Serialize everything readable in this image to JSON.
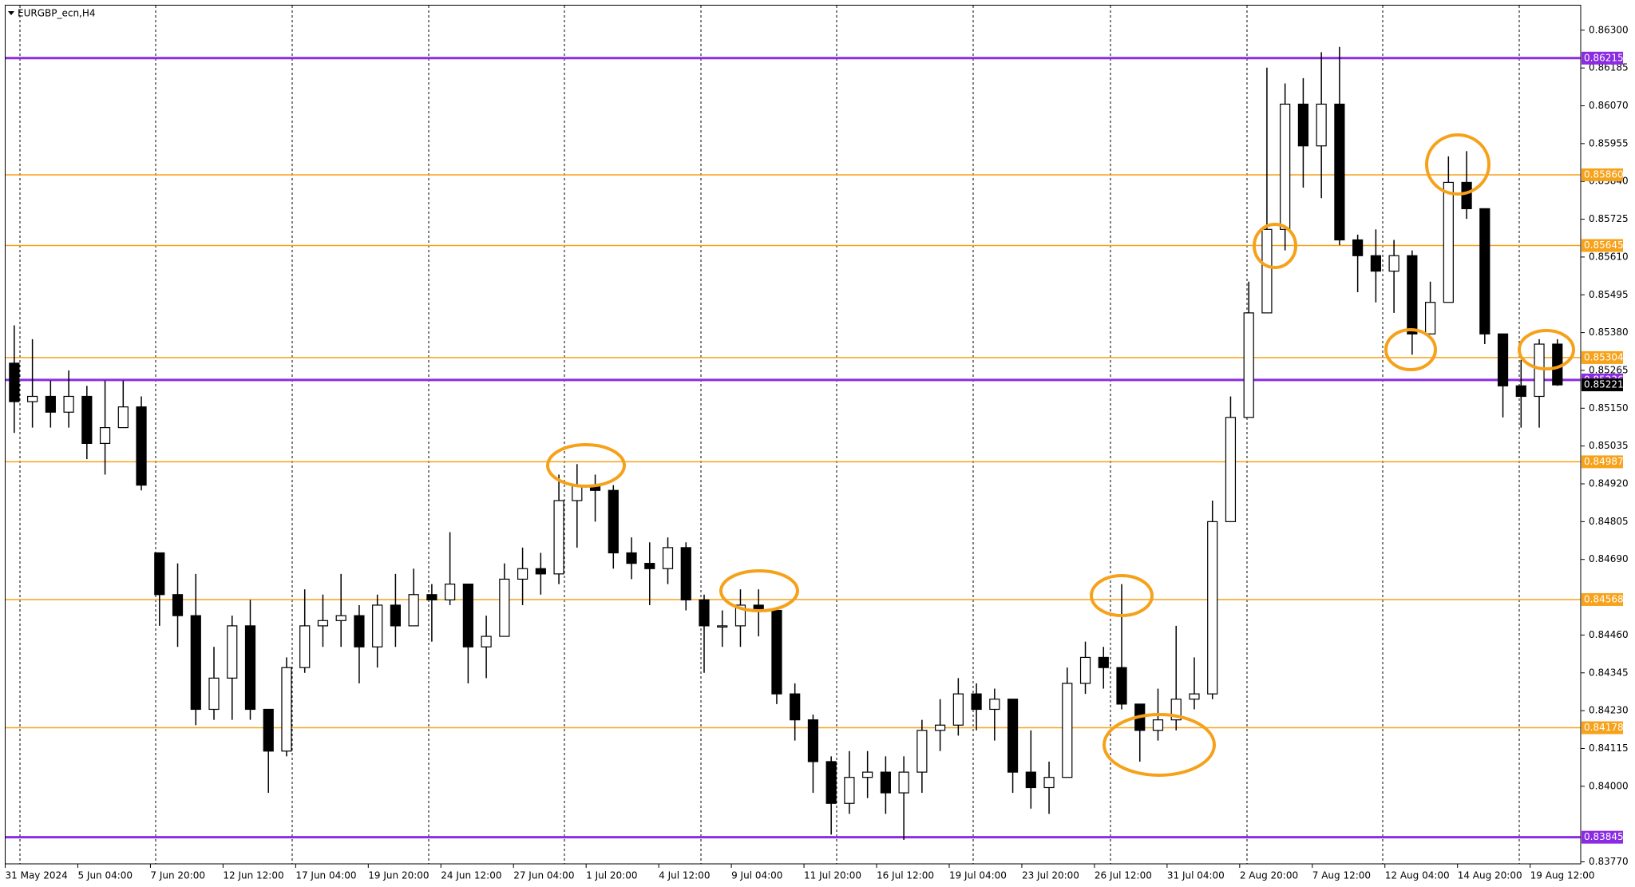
{
  "chart_data": {
    "type": "candlestick",
    "title": "EURGBP_ecn,H4",
    "categories": [
      "31 May 2024",
      null,
      null,
      null,
      "5 Jun 04:00",
      null,
      null,
      null,
      "7 Jun 20:00",
      null,
      null,
      null,
      "12 Jun 12:00",
      null,
      null,
      null,
      "17 Jun 04:00",
      null,
      null,
      null,
      "19 Jun 20:00",
      null,
      null,
      null,
      "24 Jun 12:00",
      null,
      null,
      null,
      "27 Jun 04:00",
      null,
      null,
      null,
      "1 Jul 20:00",
      null,
      null,
      null,
      "4 Jul 12:00",
      null,
      null,
      null,
      "9 Jul 04:00",
      null,
      null,
      null,
      "11 Jul 20:00",
      null,
      null,
      null,
      "16 Jul 12:00",
      null,
      null,
      null,
      "19 Jul 04:00",
      null,
      null,
      null,
      "23 Jul 20:00",
      null,
      null,
      null,
      "26 Jul 12:00",
      null,
      null,
      null,
      "31 Jul 04:00",
      null,
      null,
      null,
      "2 Aug 20:00",
      null,
      null,
      null,
      "7 Aug 12:00",
      null,
      null,
      null,
      "12 Aug 04:00",
      null,
      null,
      null,
      "14 Aug 20:00",
      null,
      null,
      null,
      "19 Aug 12:00",
      null
    ],
    "open": [
      0.85287,
      0.8517,
      0.85186,
      0.85138,
      0.85186,
      0.85043,
      0.85091,
      0.85154,
      0.8471,
      0.84583,
      0.84519,
      0.84234,
      0.84329,
      0.84488,
      0.84234,
      0.84107,
      0.84361,
      0.84488,
      0.84504,
      0.84519,
      0.84424,
      0.84551,
      0.84488,
      0.84583,
      0.84567,
      0.84615,
      0.84424,
      0.84456,
      0.8463,
      0.84662,
      0.84646,
      0.84869,
      0.84916,
      0.849,
      0.8471,
      0.84678,
      0.84662,
      0.84726,
      0.84567,
      0.84488,
      0.84488,
      0.84551,
      0.84535,
      0.84281,
      0.84202,
      0.84075,
      0.83948,
      0.84027,
      0.84043,
      0.8398,
      0.84043,
      0.8417,
      0.84186,
      0.84281,
      0.84234,
      0.84265,
      0.84043,
      0.83996,
      0.84027,
      0.84313,
      0.84392,
      0.84361,
      0.8425,
      0.8417,
      0.84202,
      0.84265,
      0.84281,
      0.84805,
      0.85122,
      0.8544,
      0.85694,
      0.86075,
      0.85948,
      0.86075,
      0.85662,
      0.85614,
      0.85567,
      0.85614,
      0.85376,
      0.85472,
      0.85837,
      0.85757,
      0.85376,
      0.85218,
      0.85186,
      0.85345
    ],
    "high": [
      0.85402,
      0.8536,
      0.85234,
      0.85265,
      0.85218,
      0.85234,
      0.85234,
      0.85186,
      0.8471,
      0.84678,
      0.84646,
      0.84424,
      0.84519,
      0.84567,
      0.84234,
      0.84392,
      0.84599,
      0.84583,
      0.84646,
      0.84551,
      0.84583,
      0.84646,
      0.84662,
      0.84615,
      0.84773,
      0.84615,
      0.84519,
      0.84678,
      0.84726,
      0.8471,
      0.84948,
      0.8498,
      0.84948,
      0.84916,
      0.84757,
      0.84742,
      0.84757,
      0.84742,
      0.84583,
      0.84535,
      0.84599,
      0.84599,
      0.84535,
      0.84313,
      0.84218,
      0.84091,
      0.84107,
      0.84107,
      0.84091,
      0.84091,
      0.84202,
      0.84265,
      0.84329,
      0.84313,
      0.84297,
      0.84265,
      0.8417,
      0.84075,
      0.84361,
      0.8444,
      0.84424,
      0.84615,
      0.8425,
      0.84297,
      0.84488,
      0.84392,
      0.84869,
      0.85186,
      0.85535,
      0.86186,
      0.86138,
      0.86154,
      0.86233,
      0.86249,
      0.85678,
      0.85694,
      0.85662,
      0.8563,
      0.85535,
      0.85916,
      0.85932,
      0.85757,
      0.85376,
      0.85297,
      0.8536,
      0.8536
    ],
    "low": [
      0.85075,
      0.85091,
      0.85091,
      0.85091,
      0.84995,
      0.84948,
      0.85091,
      0.849,
      0.84488,
      0.84424,
      0.84186,
      0.84202,
      0.84202,
      0.84202,
      0.8398,
      0.84091,
      0.84345,
      0.84424,
      0.84424,
      0.84313,
      0.84361,
      0.84424,
      0.84488,
      0.8444,
      0.84551,
      0.84313,
      0.84329,
      0.84456,
      0.84551,
      0.84583,
      0.84615,
      0.84726,
      0.84805,
      0.84662,
      0.8463,
      0.84551,
      0.84615,
      0.84535,
      0.84345,
      0.84424,
      0.84424,
      0.84456,
      0.8425,
      0.84139,
      0.8398,
      0.83853,
      0.83916,
      0.83964,
      0.83916,
      0.83837,
      0.8398,
      0.84107,
      0.84154,
      0.8417,
      0.84139,
      0.8398,
      0.83932,
      0.83916,
      0.84027,
      0.84281,
      0.84297,
      0.84234,
      0.84075,
      0.84139,
      0.8417,
      0.84234,
      0.84265,
      0.84805,
      0.85122,
      0.8544,
      0.8563,
      0.85821,
      0.85789,
      0.85646,
      0.85503,
      0.85472,
      0.8544,
      0.85313,
      0.85376,
      0.85472,
      0.85726,
      0.85345,
      0.85122,
      0.85091,
      0.85091,
      0.85218
    ],
    "close": [
      0.8517,
      0.85186,
      0.85138,
      0.85186,
      0.85043,
      0.85091,
      0.85154,
      0.84916,
      0.84583,
      0.84519,
      0.84234,
      0.84329,
      0.84488,
      0.84234,
      0.84107,
      0.84361,
      0.84488,
      0.84504,
      0.84519,
      0.84424,
      0.84551,
      0.84488,
      0.84583,
      0.84567,
      0.84615,
      0.84424,
      0.84456,
      0.8463,
      0.84662,
      0.84646,
      0.84869,
      0.84916,
      0.849,
      0.8471,
      0.84678,
      0.84662,
      0.84726,
      0.84567,
      0.84488,
      0.84488,
      0.84551,
      0.84535,
      0.84281,
      0.84202,
      0.84075,
      0.83948,
      0.84027,
      0.84043,
      0.8398,
      0.84043,
      0.8417,
      0.84186,
      0.84281,
      0.84234,
      0.84265,
      0.84043,
      0.83996,
      0.84027,
      0.84313,
      0.84392,
      0.84361,
      0.8425,
      0.8417,
      0.84202,
      0.84265,
      0.84281,
      0.84805,
      0.85122,
      0.8544,
      0.85694,
      0.86075,
      0.85948,
      0.86075,
      0.85662,
      0.85614,
      0.85567,
      0.85614,
      0.85376,
      0.85472,
      0.85837,
      0.85757,
      0.85376,
      0.85218,
      0.85186,
      0.85345,
      0.85221
    ],
    "up_color": "#ffffff",
    "down_color": "#000000",
    "wick_color": "#000000",
    "ylim": [
      0.83764,
      0.86376
    ],
    "yticks": [
      {
        "value": 0.863,
        "label": "0.86300"
      },
      0.86185,
      {
        "value": 0.8607,
        "label": "0.86070"
      },
      0.85955,
      {
        "value": 0.8584,
        "label": "0.85840"
      },
      0.85725,
      {
        "value": 0.8561,
        "label": "0.85610"
      },
      0.85495,
      {
        "value": 0.8538,
        "label": "0.85380"
      },
      0.85265,
      {
        "value": 0.8515,
        "label": "0.85150"
      },
      0.85035,
      {
        "value": 0.8492,
        "label": "0.84920"
      },
      0.84805,
      {
        "value": 0.8469,
        "label": "0.84690"
      },
      {
        "value": 0.8446,
        "label": "0.84460"
      },
      0.84345,
      {
        "value": 0.8423,
        "label": "0.84230"
      },
      0.84115,
      {
        "value": 0.84,
        "label": "0.84000"
      },
      {
        "value": 0.8377,
        "label": "0.83770"
      }
    ],
    "hlines": [
      {
        "value": 0.86215,
        "color": "#8b2be2"
      },
      {
        "value": 0.8586,
        "label": "0.85860",
        "color": "#f7a21b"
      },
      {
        "value": 0.85645,
        "color": "#f7a21b"
      },
      {
        "value": 0.85304,
        "color": "#f7a21b"
      },
      {
        "value": 0.85236,
        "color": "#8b2be2"
      },
      {
        "value": 0.84987,
        "color": "#f7a21b"
      },
      {
        "value": 0.84568,
        "color": "#f7a21b"
      },
      {
        "value": 0.84178,
        "color": "#f7a21b"
      },
      {
        "value": 0.83845,
        "color": "#8b2be2"
      }
    ]
  }
}
